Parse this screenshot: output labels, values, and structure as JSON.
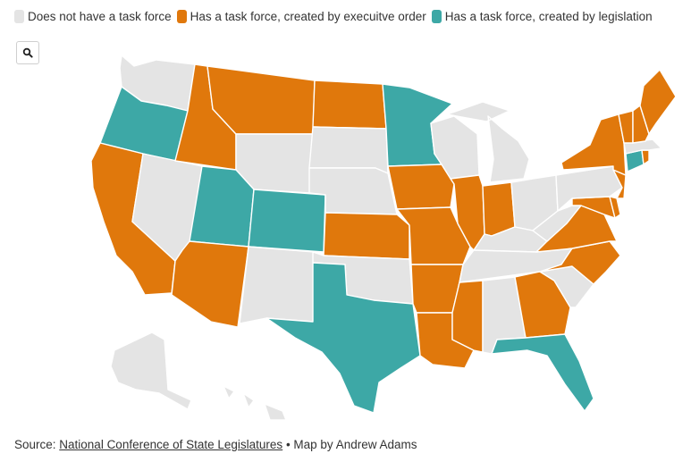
{
  "legend": {
    "items": [
      {
        "label": "Does not have a task force",
        "color": "#e4e4e4"
      },
      {
        "label": "Has a task force, created by execuitve order",
        "color": "#e0780c"
      },
      {
        "label": "Has a task force, created by legislation",
        "color": "#3da8a6"
      }
    ]
  },
  "zoom": {
    "icon": "search-icon"
  },
  "source": {
    "prefix": "Source: ",
    "link_text": "National Conference of State Legislatures",
    "suffix": " • Map by Andrew Adams"
  },
  "states": {
    "WA": "none",
    "OR": "legislation",
    "CA": "executive",
    "NV": "none",
    "ID": "executive",
    "MT": "executive",
    "WY": "none",
    "UT": "legislation",
    "CO": "legislation",
    "AZ": "executive",
    "NM": "none",
    "ND": "executive",
    "SD": "none",
    "NE": "none",
    "KS": "executive",
    "OK": "none",
    "TX": "legislation",
    "MN": "legislation",
    "IA": "executive",
    "MO": "executive",
    "AR": "executive",
    "LA": "executive",
    "WI": "none",
    "IL": "executive",
    "MI": "none",
    "IN": "executive",
    "OH": "none",
    "KY": "none",
    "TN": "none",
    "MS": "executive",
    "AL": "none",
    "GA": "executive",
    "FL": "legislation",
    "SC": "none",
    "NC": "executive",
    "VA": "executive",
    "WV": "none",
    "MD": "executive",
    "DE": "executive",
    "NJ": "executive",
    "PA": "none",
    "NY": "executive",
    "CT": "legislation",
    "RI": "executive",
    "MA": "none",
    "VT": "executive",
    "NH": "executive",
    "ME": "executive",
    "AK": "none",
    "HI": "none"
  },
  "category_colors": {
    "none": "#e4e4e4",
    "executive": "#e0780c",
    "legislation": "#3da8a6"
  }
}
